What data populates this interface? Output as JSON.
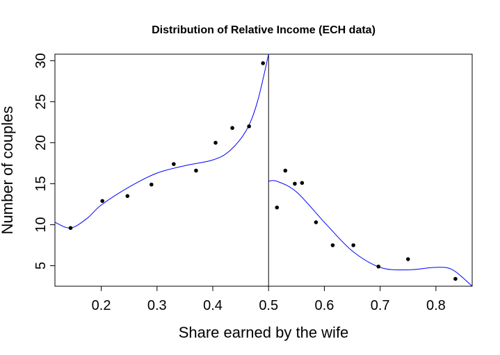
{
  "chart_data": {
    "type": "scatter",
    "title": "Distribution of Relative Income (ECH data)",
    "xlabel": "Share earned by the wife",
    "ylabel": "Number of couples",
    "xlim": [
      0.117,
      0.865
    ],
    "ylim": [
      2.5,
      30.8
    ],
    "xticks": [
      0.2,
      0.3,
      0.4,
      0.5,
      0.6,
      0.7,
      0.8
    ],
    "yticks": [
      5,
      10,
      15,
      20,
      25,
      30
    ],
    "grid": false,
    "vline": 0.5,
    "points": [
      {
        "x": 0.145,
        "y": 9.6
      },
      {
        "x": 0.202,
        "y": 12.9
      },
      {
        "x": 0.247,
        "y": 13.5
      },
      {
        "x": 0.29,
        "y": 14.9
      },
      {
        "x": 0.33,
        "y": 17.4
      },
      {
        "x": 0.37,
        "y": 16.6
      },
      {
        "x": 0.405,
        "y": 20.0
      },
      {
        "x": 0.435,
        "y": 21.8
      },
      {
        "x": 0.465,
        "y": 22.0
      },
      {
        "x": 0.49,
        "y": 29.7
      },
      {
        "x": 0.515,
        "y": 12.1
      },
      {
        "x": 0.53,
        "y": 16.6
      },
      {
        "x": 0.547,
        "y": 15.0
      },
      {
        "x": 0.56,
        "y": 15.1
      },
      {
        "x": 0.585,
        "y": 10.3
      },
      {
        "x": 0.615,
        "y": 7.5
      },
      {
        "x": 0.652,
        "y": 7.5
      },
      {
        "x": 0.697,
        "y": 4.9
      },
      {
        "x": 0.75,
        "y": 5.8
      },
      {
        "x": 0.835,
        "y": 3.4
      }
    ],
    "fit_left": [
      {
        "x": 0.117,
        "y": 10.3
      },
      {
        "x": 0.145,
        "y": 9.6
      },
      {
        "x": 0.175,
        "y": 10.8
      },
      {
        "x": 0.2,
        "y": 12.4
      },
      {
        "x": 0.25,
        "y": 14.6
      },
      {
        "x": 0.3,
        "y": 16.3
      },
      {
        "x": 0.35,
        "y": 17.2
      },
      {
        "x": 0.4,
        "y": 17.9
      },
      {
        "x": 0.43,
        "y": 19.0
      },
      {
        "x": 0.46,
        "y": 21.5
      },
      {
        "x": 0.48,
        "y": 25.0
      },
      {
        "x": 0.5,
        "y": 30.8
      }
    ],
    "fit_right": [
      {
        "x": 0.5,
        "y": 15.3
      },
      {
        "x": 0.515,
        "y": 15.3
      },
      {
        "x": 0.55,
        "y": 14.0
      },
      {
        "x": 0.6,
        "y": 10.3
      },
      {
        "x": 0.65,
        "y": 6.8
      },
      {
        "x": 0.7,
        "y": 4.8
      },
      {
        "x": 0.75,
        "y": 4.5
      },
      {
        "x": 0.8,
        "y": 4.8
      },
      {
        "x": 0.83,
        "y": 4.5
      },
      {
        "x": 0.865,
        "y": 2.5
      }
    ],
    "colors": {
      "fit": "#0000ff",
      "points": "#000000",
      "axes": "#000000"
    }
  }
}
